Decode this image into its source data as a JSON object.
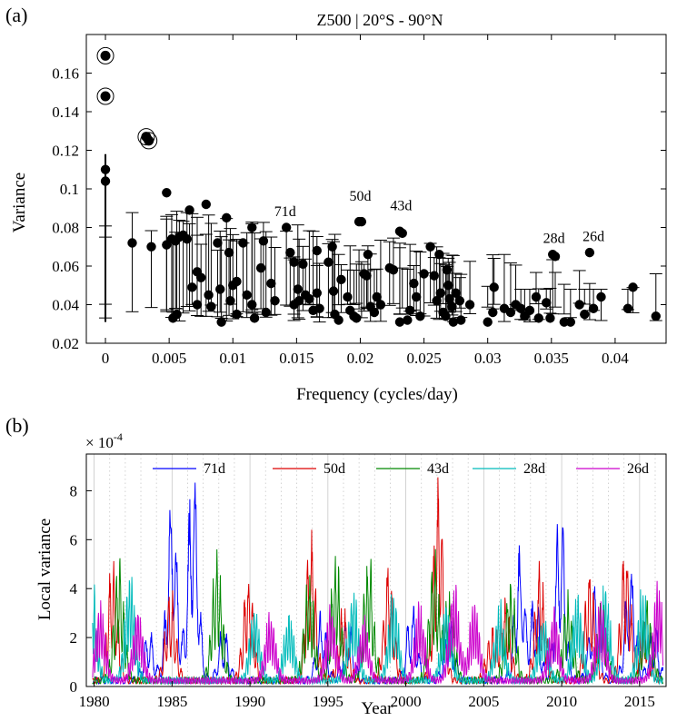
{
  "chart_data": [
    {
      "panel_label": "(a)",
      "type": "scatter",
      "title": "Z500 | 20°S - 90°N",
      "xlabel": "Frequency (cycles/day)",
      "ylabel": "Variance",
      "xlim": [
        -0.0015,
        0.044
      ],
      "ylim": [
        0.02,
        0.18
      ],
      "xticks": [
        0,
        0.005,
        0.01,
        0.015,
        0.02,
        0.025,
        0.03,
        0.035,
        0.04
      ],
      "xtick_labels": [
        "0",
        "0.005",
        "0.01",
        "0.015",
        "0.02",
        "0.025",
        "0.03",
        "0.035",
        "0.04"
      ],
      "yticks": [
        0.02,
        0.04,
        0.06,
        0.08,
        0.1,
        0.12,
        0.14,
        0.16
      ],
      "ytick_labels": [
        "0.02",
        "0.04",
        "0.06",
        "0.08",
        "0.1",
        "0.12",
        "0.14",
        "0.16"
      ],
      "circled_points": [
        {
          "x": 0.0,
          "y": 0.169
        },
        {
          "x": 0.0,
          "y": 0.148
        },
        {
          "x": 0.0032,
          "y": 0.127
        },
        {
          "x": 0.0034,
          "y": 0.125
        }
      ],
      "points": [
        [
          0.0,
          0.11
        ],
        [
          0.0,
          0.104
        ],
        [
          0.0021,
          0.072
        ],
        [
          0.0036,
          0.07
        ],
        [
          0.0048,
          0.098
        ],
        [
          0.0048,
          0.071
        ],
        [
          0.0052,
          0.074
        ],
        [
          0.0055,
          0.073
        ],
        [
          0.0058,
          0.075
        ],
        [
          0.0061,
          0.076
        ],
        [
          0.0064,
          0.074
        ],
        [
          0.0053,
          0.033
        ],
        [
          0.0056,
          0.035
        ],
        [
          0.0066,
          0.089
        ],
        [
          0.0068,
          0.049
        ],
        [
          0.0072,
          0.057
        ],
        [
          0.0072,
          0.04
        ],
        [
          0.0075,
          0.054
        ],
        [
          0.0079,
          0.092
        ],
        [
          0.0081,
          0.045
        ],
        [
          0.0083,
          0.039
        ],
        [
          0.0088,
          0.072
        ],
        [
          0.009,
          0.048
        ],
        [
          0.0091,
          0.031
        ],
        [
          0.0095,
          0.085
        ],
        [
          0.0097,
          0.067
        ],
        [
          0.0098,
          0.042
        ],
        [
          0.01,
          0.05
        ],
        [
          0.0103,
          0.052
        ],
        [
          0.0103,
          0.035
        ],
        [
          0.0108,
          0.072
        ],
        [
          0.0111,
          0.045
        ],
        [
          0.0115,
          0.08
        ],
        [
          0.0115,
          0.04
        ],
        [
          0.0117,
          0.033
        ],
        [
          0.0122,
          0.059
        ],
        [
          0.0124,
          0.073
        ],
        [
          0.0126,
          0.036
        ],
        [
          0.013,
          0.051
        ],
        [
          0.0133,
          0.042
        ],
        [
          0.0142,
          0.08
        ],
        [
          0.0145,
          0.067
        ],
        [
          0.0148,
          0.062
        ],
        [
          0.0148,
          0.04
        ],
        [
          0.0151,
          0.048
        ],
        [
          0.0152,
          0.042
        ],
        [
          0.0155,
          0.061
        ],
        [
          0.0157,
          0.045
        ],
        [
          0.016,
          0.043
        ],
        [
          0.0163,
          0.037
        ],
        [
          0.0166,
          0.068
        ],
        [
          0.0166,
          0.046
        ],
        [
          0.0168,
          0.038
        ],
        [
          0.0175,
          0.062
        ],
        [
          0.0178,
          0.07
        ],
        [
          0.0179,
          0.047
        ],
        [
          0.018,
          0.035
        ],
        [
          0.0183,
          0.032
        ],
        [
          0.0185,
          0.053
        ],
        [
          0.019,
          0.044
        ],
        [
          0.0192,
          0.037
        ],
        [
          0.0195,
          0.034
        ],
        [
          0.0197,
          0.033
        ],
        [
          0.0199,
          0.083
        ],
        [
          0.0201,
          0.083
        ],
        [
          0.0203,
          0.056
        ],
        [
          0.0205,
          0.055
        ],
        [
          0.0206,
          0.066
        ],
        [
          0.0208,
          0.039
        ],
        [
          0.0211,
          0.036
        ],
        [
          0.0213,
          0.044
        ],
        [
          0.0216,
          0.04
        ],
        [
          0.0223,
          0.059
        ],
        [
          0.0226,
          0.058
        ],
        [
          0.0231,
          0.078
        ],
        [
          0.0233,
          0.077
        ],
        [
          0.0231,
          0.031
        ],
        [
          0.0237,
          0.032
        ],
        [
          0.0239,
          0.037
        ],
        [
          0.0242,
          0.051
        ],
        [
          0.0244,
          0.044
        ],
        [
          0.0247,
          0.034
        ],
        [
          0.025,
          0.056
        ],
        [
          0.0255,
          0.07
        ],
        [
          0.0258,
          0.055
        ],
        [
          0.026,
          0.042
        ],
        [
          0.0262,
          0.066
        ],
        [
          0.0263,
          0.046
        ],
        [
          0.0265,
          0.036
        ],
        [
          0.0267,
          0.034
        ],
        [
          0.0268,
          0.058
        ],
        [
          0.0269,
          0.05
        ],
        [
          0.027,
          0.043
        ],
        [
          0.0272,
          0.039
        ],
        [
          0.0273,
          0.031
        ],
        [
          0.0275,
          0.046
        ],
        [
          0.0278,
          0.042
        ],
        [
          0.0279,
          0.032
        ],
        [
          0.0286,
          0.04
        ],
        [
          0.03,
          0.031
        ],
        [
          0.0305,
          0.049
        ],
        [
          0.0304,
          0.036
        ],
        [
          0.0313,
          0.038
        ],
        [
          0.0318,
          0.036
        ],
        [
          0.0322,
          0.04
        ],
        [
          0.0326,
          0.038
        ],
        [
          0.0329,
          0.034
        ],
        [
          0.0333,
          0.037
        ],
        [
          0.0338,
          0.044
        ],
        [
          0.034,
          0.033
        ],
        [
          0.0346,
          0.041
        ],
        [
          0.0349,
          0.033
        ],
        [
          0.0351,
          0.066
        ],
        [
          0.0353,
          0.065
        ],
        [
          0.036,
          0.031
        ],
        [
          0.0365,
          0.031
        ],
        [
          0.0372,
          0.04
        ],
        [
          0.0376,
          0.035
        ],
        [
          0.038,
          0.067
        ],
        [
          0.0383,
          0.038
        ],
        [
          0.0389,
          0.044
        ],
        [
          0.041,
          0.038
        ],
        [
          0.0414,
          0.049
        ],
        [
          0.0432,
          0.034
        ]
      ],
      "annotations": [
        {
          "text": "71d",
          "x": 0.0141,
          "y": 0.086
        },
        {
          "text": "50d",
          "x": 0.02,
          "y": 0.094
        },
        {
          "text": "43d",
          "x": 0.0232,
          "y": 0.089
        },
        {
          "text": "28d",
          "x": 0.0352,
          "y": 0.072
        },
        {
          "text": "26d",
          "x": 0.0383,
          "y": 0.073
        }
      ]
    },
    {
      "panel_label": "(b)",
      "type": "line",
      "xlabel": "Year",
      "ylabel": "Local variance",
      "y_multiplier": "× 10",
      "y_multiplier_exp": "-4",
      "xlim": [
        1979.5,
        2016.7
      ],
      "ylim": [
        0,
        9.5
      ],
      "xticks": [
        1980,
        1985,
        1990,
        1995,
        2000,
        2005,
        2010,
        2015
      ],
      "xtick_labels": [
        "1980",
        "1985",
        "1990",
        "1995",
        "2000",
        "2005",
        "2010",
        "2015"
      ],
      "yticks": [
        0,
        2,
        4,
        6,
        8
      ],
      "ytick_labels": [
        "0",
        "2",
        "4",
        "6",
        "8"
      ],
      "legend_position": "top",
      "series": [
        {
          "name": "71d",
          "color": "#0000ff",
          "period_years": 0.4,
          "phase": 0.1,
          "peaks": [
            [
              1985.0,
              7.5
            ],
            [
              1986.35,
              8.7
            ],
            [
              1983.5,
              1.9
            ],
            [
              1988.3,
              2.0
            ],
            [
              1994.6,
              2.5
            ],
            [
              1996.3,
              2.4
            ],
            [
              2000.4,
              2.9
            ],
            [
              2002.8,
              2.2
            ],
            [
              2007.3,
              5.1
            ],
            [
              2008.3,
              3.1
            ],
            [
              2009.9,
              6.6
            ],
            [
              2012.1,
              3.5
            ],
            [
              2014.4,
              4.6
            ],
            [
              2015.9,
              2.1
            ]
          ]
        },
        {
          "name": "50d",
          "color": "#dd0000",
          "period_years": 0.27,
          "phase": 1.3,
          "peaks": [
            [
              1981.2,
              4.5
            ],
            [
              1984.9,
              3.5
            ],
            [
              1989.9,
              4.2
            ],
            [
              1993.9,
              5.5
            ],
            [
              1996.0,
              2.7
            ],
            [
              1998.9,
              4.6
            ],
            [
              2002.1,
              7.5
            ],
            [
              2005.5,
              1.9
            ],
            [
              2006.4,
              3.0
            ],
            [
              2008.6,
              4.3
            ],
            [
              2011.8,
              4.2
            ],
            [
              2014.1,
              5.1
            ],
            [
              2015.3,
              2.3
            ]
          ]
        },
        {
          "name": "43d",
          "color": "#008800",
          "period_years": 0.23,
          "phase": 2.1,
          "peaks": [
            [
              1981.6,
              4.4
            ],
            [
              1987.9,
              4.9
            ],
            [
              1993.8,
              4.0
            ],
            [
              1995.5,
              4.7
            ],
            [
              1997.6,
              4.8
            ],
            [
              2001.8,
              4.7
            ],
            [
              2002.8,
              3.2
            ],
            [
              2006.7,
              3.9
            ],
            [
              2010.4,
              3.2
            ],
            [
              2012.6,
              2.9
            ],
            [
              2015.5,
              3.1
            ]
          ]
        },
        {
          "name": "28d",
          "color": "#00bbbb",
          "period_years": 0.16,
          "phase": 0.7,
          "peaks": [
            [
              1979.8,
              4.2
            ],
            [
              1982.3,
              4.0
            ],
            [
              1990.3,
              2.9
            ],
            [
              1992.5,
              2.6
            ],
            [
              1996.6,
              3.6
            ],
            [
              1999.2,
              3.6
            ],
            [
              2002.6,
              2.9
            ],
            [
              2006.0,
              2.9
            ],
            [
              2008.8,
              2.6
            ],
            [
              2011.0,
              3.4
            ],
            [
              2012.8,
              3.6
            ],
            [
              2015.2,
              3.5
            ]
          ]
        },
        {
          "name": "26d",
          "color": "#cc00cc",
          "period_years": 0.15,
          "phase": 2.8,
          "peaks": [
            [
              1980.4,
              2.8
            ],
            [
              1982.8,
              2.7
            ],
            [
              1991.3,
              2.6
            ],
            [
              1995.2,
              2.8
            ],
            [
              1997.3,
              2.4
            ],
            [
              2000.9,
              2.9
            ],
            [
              2003.1,
              3.8
            ],
            [
              2004.4,
              2.9
            ],
            [
              2009.5,
              2.7
            ],
            [
              2012.5,
              3.0
            ],
            [
              2016.2,
              3.7
            ]
          ]
        }
      ]
    }
  ]
}
